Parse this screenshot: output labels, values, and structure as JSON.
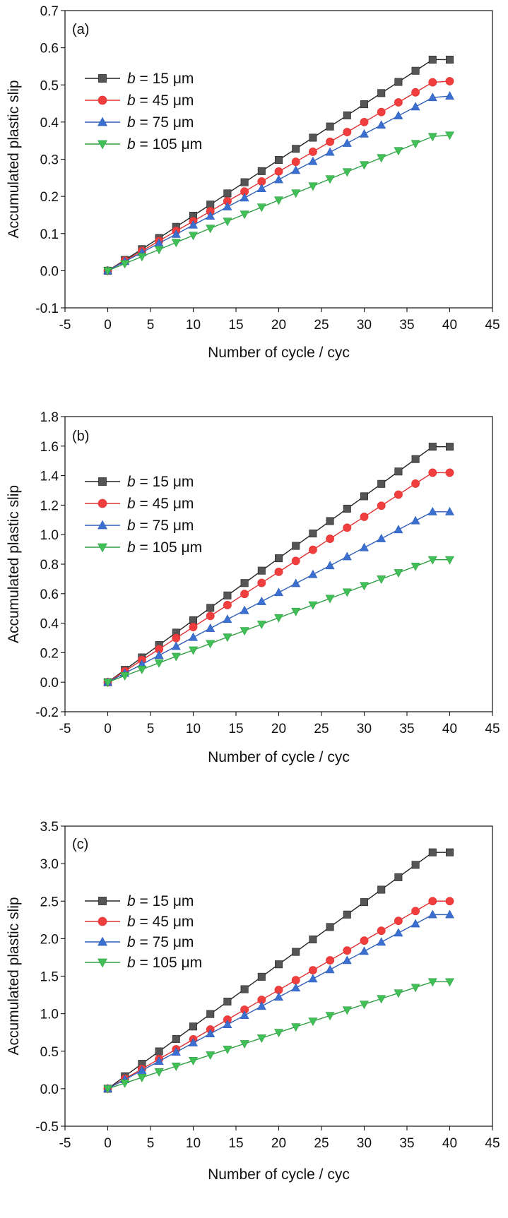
{
  "figure": {
    "background": "#ffffff"
  },
  "chart_data": [
    {
      "type": "line",
      "panel_label": "(a)",
      "xlabel": "Number of cycle / cyc",
      "ylabel": "Accumulated plastic slip",
      "xlim": [
        -5,
        45
      ],
      "ylim": [
        -0.1,
        0.7
      ],
      "xticks": [
        -5,
        0,
        5,
        10,
        15,
        20,
        25,
        30,
        35,
        40,
        45
      ],
      "yticks": [
        -0.1,
        0.0,
        0.1,
        0.2,
        0.3,
        0.4,
        0.5,
        0.6,
        0.7
      ],
      "ytick_labels": [
        "-0.1",
        "0.0",
        "0.1",
        "0.2",
        "0.3",
        "0.4",
        "0.5",
        "0.6",
        "0.7"
      ],
      "grid": false,
      "legend_position": "top-left",
      "x": [
        0,
        2,
        4,
        6,
        8,
        10,
        12,
        14,
        16,
        18,
        20,
        22,
        24,
        26,
        28,
        30,
        32,
        34,
        36,
        38,
        40
      ],
      "series": [
        {
          "name_prefix": "b",
          "name_suffix": " = 15 μm",
          "color": "#222222",
          "fill": "#555555",
          "marker": "square",
          "values": [
            0,
            0.029,
            0.058,
            0.088,
            0.118,
            0.148,
            0.178,
            0.208,
            0.238,
            0.268,
            0.298,
            0.328,
            0.358,
            0.388,
            0.418,
            0.448,
            0.478,
            0.508,
            0.538,
            0.568,
            0.568
          ]
        },
        {
          "name_prefix": "b",
          "name_suffix": " = 45 μm",
          "color": "#e03131",
          "fill": "#f03e3e",
          "marker": "circle",
          "values": [
            0,
            0.027,
            0.053,
            0.08,
            0.107,
            0.133,
            0.16,
            0.187,
            0.213,
            0.24,
            0.267,
            0.293,
            0.32,
            0.347,
            0.373,
            0.4,
            0.427,
            0.453,
            0.48,
            0.507,
            0.51
          ]
        },
        {
          "name_prefix": "b",
          "name_suffix": " = 75 μm",
          "color": "#2f5fb8",
          "fill": "#3b6fd0",
          "marker": "triangle-up",
          "values": [
            0,
            0.025,
            0.049,
            0.074,
            0.098,
            0.123,
            0.147,
            0.172,
            0.196,
            0.221,
            0.245,
            0.27,
            0.294,
            0.319,
            0.343,
            0.368,
            0.392,
            0.417,
            0.441,
            0.466,
            0.47
          ]
        },
        {
          "name_prefix": "b",
          "name_suffix": " = 105 μm",
          "color": "#2f9e44",
          "fill": "#40c057",
          "marker": "triangle-down",
          "values": [
            0,
            0.019,
            0.038,
            0.057,
            0.076,
            0.095,
            0.114,
            0.133,
            0.152,
            0.171,
            0.19,
            0.209,
            0.228,
            0.247,
            0.266,
            0.285,
            0.304,
            0.323,
            0.342,
            0.361,
            0.365
          ]
        }
      ]
    },
    {
      "type": "line",
      "panel_label": "(b)",
      "xlabel": "Number of cycle / cyc",
      "ylabel": "Accumulated plastic slip",
      "xlim": [
        -5,
        45
      ],
      "ylim": [
        -0.2,
        1.8
      ],
      "xticks": [
        -5,
        0,
        5,
        10,
        15,
        20,
        25,
        30,
        35,
        40,
        45
      ],
      "yticks": [
        -0.2,
        0.0,
        0.2,
        0.4,
        0.6,
        0.8,
        1.0,
        1.2,
        1.4,
        1.6,
        1.8
      ],
      "ytick_labels": [
        "-0.2",
        "0.0",
        "0.2",
        "0.4",
        "0.6",
        "0.8",
        "1.0",
        "1.2",
        "1.4",
        "1.6",
        "1.8"
      ],
      "grid": false,
      "legend_position": "top-left",
      "x": [
        0,
        2,
        4,
        6,
        8,
        10,
        12,
        14,
        16,
        18,
        20,
        22,
        24,
        26,
        28,
        30,
        32,
        34,
        36,
        38,
        40
      ],
      "series": [
        {
          "name_prefix": "b",
          "name_suffix": " = 15 μm",
          "color": "#222222",
          "fill": "#555555",
          "marker": "square",
          "values": [
            0,
            0.084,
            0.168,
            0.252,
            0.336,
            0.42,
            0.504,
            0.588,
            0.672,
            0.756,
            0.84,
            0.924,
            1.008,
            1.092,
            1.176,
            1.26,
            1.344,
            1.428,
            1.512,
            1.596,
            1.596
          ]
        },
        {
          "name_prefix": "b",
          "name_suffix": " = 45 μm",
          "color": "#e03131",
          "fill": "#f03e3e",
          "marker": "circle",
          "values": [
            0,
            0.075,
            0.15,
            0.224,
            0.299,
            0.374,
            0.449,
            0.523,
            0.598,
            0.673,
            0.748,
            0.822,
            0.897,
            0.972,
            1.047,
            1.121,
            1.196,
            1.271,
            1.346,
            1.42,
            1.42
          ]
        },
        {
          "name_prefix": "b",
          "name_suffix": " = 75 μm",
          "color": "#2f5fb8",
          "fill": "#3b6fd0",
          "marker": "triangle-up",
          "values": [
            0,
            0.061,
            0.122,
            0.182,
            0.243,
            0.304,
            0.365,
            0.426,
            0.486,
            0.547,
            0.608,
            0.669,
            0.73,
            0.79,
            0.851,
            0.912,
            0.973,
            1.034,
            1.094,
            1.155,
            1.155
          ]
        },
        {
          "name_prefix": "b",
          "name_suffix": " = 105 μm",
          "color": "#2f9e44",
          "fill": "#40c057",
          "marker": "triangle-down",
          "values": [
            0,
            0.044,
            0.087,
            0.131,
            0.175,
            0.218,
            0.262,
            0.306,
            0.349,
            0.393,
            0.437,
            0.48,
            0.524,
            0.568,
            0.611,
            0.655,
            0.699,
            0.742,
            0.786,
            0.83,
            0.83
          ]
        }
      ]
    },
    {
      "type": "line",
      "panel_label": "(c)",
      "xlabel": "Number of cycle / cyc",
      "ylabel": "Accumulated plastic slip",
      "xlim": [
        -5,
        45
      ],
      "ylim": [
        -0.5,
        3.5
      ],
      "xticks": [
        -5,
        0,
        5,
        10,
        15,
        20,
        25,
        30,
        35,
        40,
        45
      ],
      "yticks": [
        -0.5,
        0.0,
        0.5,
        1.0,
        1.5,
        2.0,
        2.5,
        3.0,
        3.5
      ],
      "ytick_labels": [
        "-0.5",
        "0.0",
        "0.5",
        "1.0",
        "1.5",
        "2.0",
        "2.5",
        "3.0",
        "3.5"
      ],
      "grid": false,
      "legend_position": "top-left",
      "x": [
        0,
        2,
        4,
        6,
        8,
        10,
        12,
        14,
        16,
        18,
        20,
        22,
        24,
        26,
        28,
        30,
        32,
        34,
        36,
        38,
        40
      ],
      "series": [
        {
          "name_prefix": "b",
          "name_suffix": " = 15 μm",
          "color": "#222222",
          "fill": "#555555",
          "marker": "square",
          "values": [
            0,
            0.166,
            0.332,
            0.497,
            0.663,
            0.829,
            0.995,
            1.161,
            1.326,
            1.492,
            1.658,
            1.824,
            1.99,
            2.155,
            2.321,
            2.487,
            2.653,
            2.819,
            2.984,
            3.15,
            3.15
          ]
        },
        {
          "name_prefix": "b",
          "name_suffix": " = 45 μm",
          "color": "#e03131",
          "fill": "#f03e3e",
          "marker": "circle",
          "values": [
            0,
            0.132,
            0.263,
            0.395,
            0.526,
            0.658,
            0.789,
            0.921,
            1.053,
            1.184,
            1.316,
            1.447,
            1.579,
            1.711,
            1.842,
            1.974,
            2.105,
            2.237,
            2.368,
            2.5,
            2.5
          ]
        },
        {
          "name_prefix": "b",
          "name_suffix": " = 75 μm",
          "color": "#2f5fb8",
          "fill": "#3b6fd0",
          "marker": "triangle-up",
          "values": [
            0,
            0.122,
            0.244,
            0.366,
            0.488,
            0.611,
            0.733,
            0.855,
            0.977,
            1.099,
            1.221,
            1.343,
            1.465,
            1.587,
            1.709,
            1.832,
            1.954,
            2.076,
            2.198,
            2.32,
            2.32
          ]
        },
        {
          "name_prefix": "b",
          "name_suffix": " = 105 μm",
          "color": "#2f9e44",
          "fill": "#40c057",
          "marker": "triangle-down",
          "values": [
            0,
            0.075,
            0.15,
            0.225,
            0.3,
            0.375,
            0.45,
            0.525,
            0.6,
            0.675,
            0.75,
            0.825,
            0.9,
            0.975,
            1.05,
            1.125,
            1.2,
            1.275,
            1.35,
            1.425,
            1.425
          ]
        }
      ]
    }
  ]
}
